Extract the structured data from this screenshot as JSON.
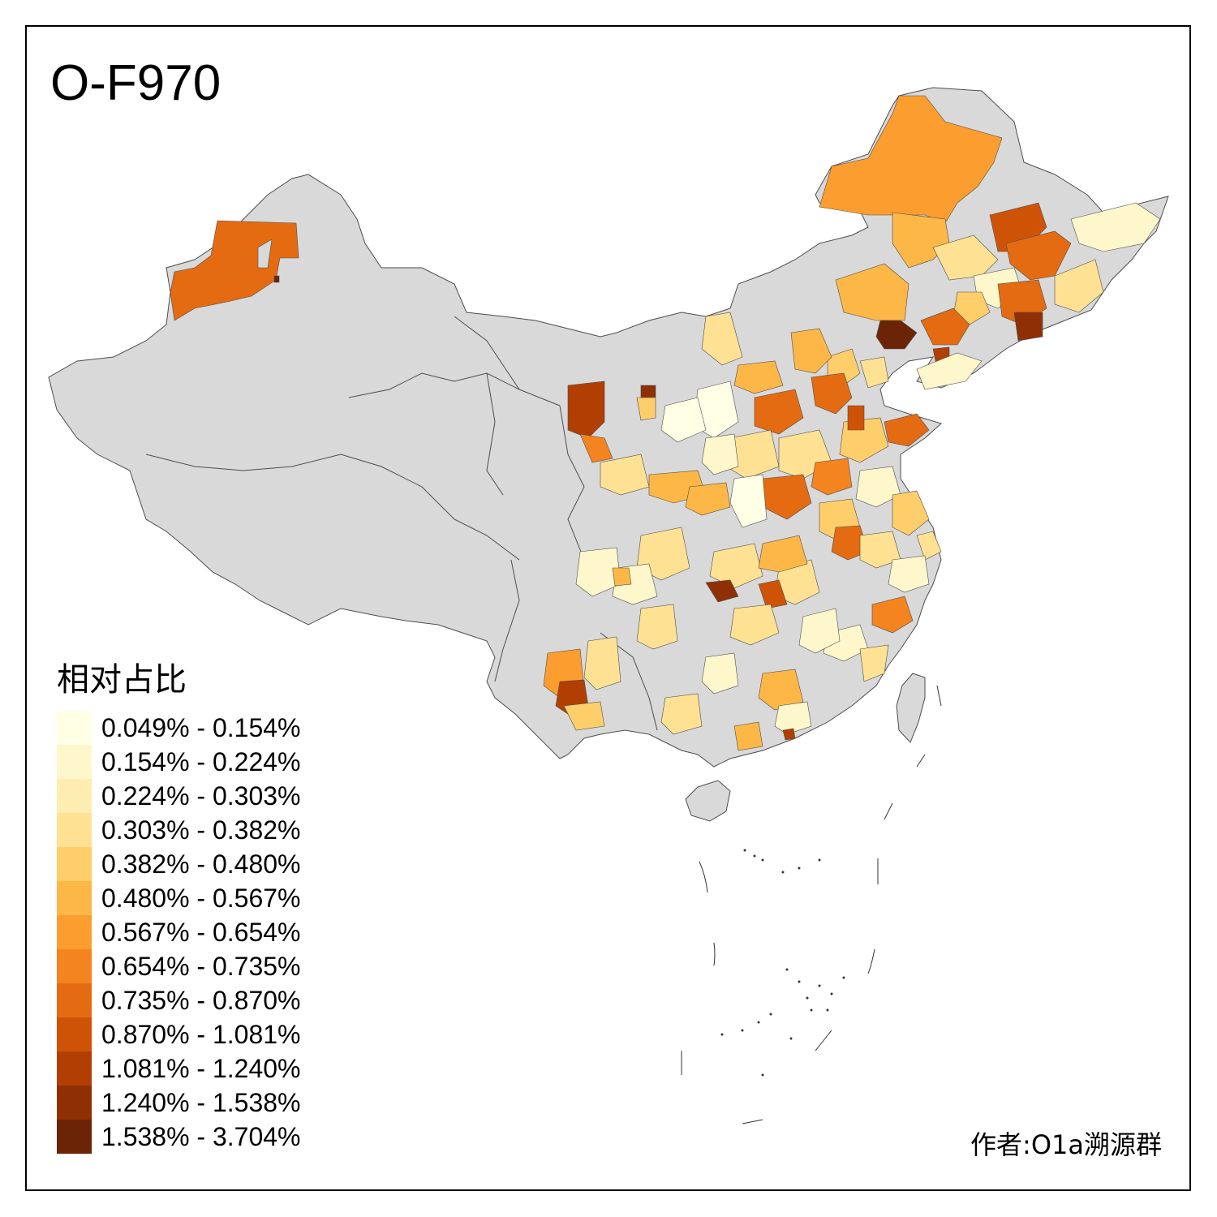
{
  "title": "O-F970",
  "legend": {
    "title": "相对占比",
    "items": [
      {
        "label": "0.049% - 0.154%",
        "color": "#FFFFE5"
      },
      {
        "label": "0.154% - 0.224%",
        "color": "#FFF7CC"
      },
      {
        "label": "0.224% - 0.303%",
        "color": "#FEEDB1"
      },
      {
        "label": "0.303% - 0.382%",
        "color": "#FEE193"
      },
      {
        "label": "0.382% - 0.480%",
        "color": "#FECE6A"
      },
      {
        "label": "0.480% - 0.567%",
        "color": "#FDB747"
      },
      {
        "label": "0.567% - 0.654%",
        "color": "#FB9D2F"
      },
      {
        "label": "0.654% - 0.735%",
        "color": "#F3841F"
      },
      {
        "label": "0.735% - 0.870%",
        "color": "#E46B12"
      },
      {
        "label": "0.870% - 1.081%",
        "color": "#CF5307"
      },
      {
        "label": "1.081% - 1.240%",
        "color": "#B13F04"
      },
      {
        "label": "1.240% - 1.538%",
        "color": "#8E3004"
      },
      {
        "label": "1.538% - 3.704%",
        "color": "#6B2406"
      }
    ]
  },
  "credit": "作者:O1a溯源群",
  "colors": {
    "no_data": "#D9D9D9",
    "border": "#4D4D4D",
    "frame": "#000000"
  }
}
